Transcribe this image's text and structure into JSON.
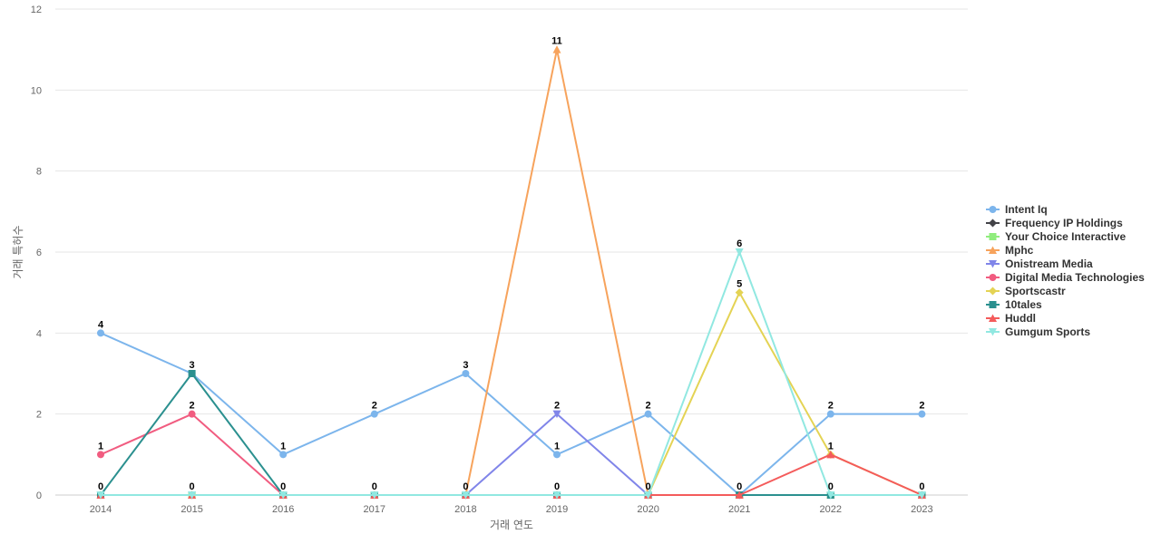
{
  "chart_data": {
    "type": "line",
    "title": "",
    "xlabel": "거래 연도",
    "ylabel": "거래 특허수",
    "x": [
      "2014",
      "2015",
      "2016",
      "2017",
      "2018",
      "2019",
      "2020",
      "2021",
      "2022",
      "2023"
    ],
    "ylim": [
      0,
      12
    ],
    "yticks": [
      0,
      2,
      4,
      6,
      8,
      10,
      12
    ],
    "grid": true,
    "legend_position": "right",
    "series": [
      {
        "name": "Intent Iq",
        "color": "#7cb5ec",
        "marker": "circle",
        "values": [
          4,
          3,
          1,
          2,
          3,
          1,
          2,
          0,
          2,
          2
        ]
      },
      {
        "name": "Frequency IP Holdings",
        "color": "#434348",
        "marker": "diamond",
        "values": [
          0,
          0,
          0,
          0,
          0,
          0,
          0,
          0,
          0,
          0
        ]
      },
      {
        "name": "Your Choice Interactive",
        "color": "#90ed7d",
        "marker": "square",
        "values": [
          0,
          0,
          0,
          0,
          0,
          0,
          0,
          0,
          0,
          0
        ]
      },
      {
        "name": "Mphc",
        "color": "#f7a35c",
        "marker": "triangle",
        "values": [
          0,
          0,
          0,
          0,
          0,
          11,
          0,
          0,
          0,
          0
        ]
      },
      {
        "name": "Onistream Media",
        "color": "#8085e9",
        "marker": "triangle-down",
        "values": [
          0,
          0,
          0,
          0,
          0,
          2,
          0,
          0,
          0,
          0
        ]
      },
      {
        "name": "Digital Media Technologies",
        "color": "#f15c80",
        "marker": "circle",
        "values": [
          1,
          2,
          0,
          0,
          0,
          0,
          0,
          0,
          0,
          0
        ]
      },
      {
        "name": "Sportscastr",
        "color": "#e4d354",
        "marker": "diamond",
        "values": [
          0,
          0,
          0,
          0,
          0,
          0,
          0,
          5,
          1,
          0
        ]
      },
      {
        "name": "10tales",
        "color": "#2b908f",
        "marker": "square",
        "values": [
          0,
          3,
          0,
          0,
          0,
          0,
          0,
          0,
          0,
          0
        ]
      },
      {
        "name": "Huddl",
        "color": "#f45b5b",
        "marker": "triangle",
        "values": [
          0,
          0,
          0,
          0,
          0,
          0,
          0,
          0,
          1,
          0
        ]
      },
      {
        "name": "Gumgum Sports",
        "color": "#91e8e1",
        "marker": "triangle-down",
        "values": [
          0,
          0,
          0,
          0,
          0,
          0,
          0,
          6,
          0,
          0
        ]
      }
    ],
    "data_labels": [
      {
        "x": "2014",
        "value": 4,
        "series": "Intent Iq"
      },
      {
        "x": "2014",
        "value": 1,
        "series": "Digital Media Technologies"
      },
      {
        "x": "2014",
        "value": 0,
        "series": "10tales"
      },
      {
        "x": "2015",
        "value": 3,
        "series": "10tales"
      },
      {
        "x": "2015",
        "value": 2,
        "series": "Digital Media Technologies"
      },
      {
        "x": "2015",
        "value": 0,
        "series": "Gumgum Sports"
      },
      {
        "x": "2016",
        "value": 1,
        "series": "Intent Iq"
      },
      {
        "x": "2016",
        "value": 0,
        "series": "Gumgum Sports"
      },
      {
        "x": "2017",
        "value": 2,
        "series": "Intent Iq"
      },
      {
        "x": "2017",
        "value": 0,
        "series": "Gumgum Sports"
      },
      {
        "x": "2018",
        "value": 3,
        "series": "Intent Iq"
      },
      {
        "x": "2018",
        "value": 0,
        "series": "Gumgum Sports"
      },
      {
        "x": "2019",
        "value": 11,
        "series": "Mphc"
      },
      {
        "x": "2019",
        "value": 2,
        "series": "Onistream Media"
      },
      {
        "x": "2019",
        "value": 1,
        "series": "Intent Iq"
      },
      {
        "x": "2019",
        "value": 0,
        "series": "Gumgum Sports"
      },
      {
        "x": "2020",
        "value": 2,
        "series": "Intent Iq"
      },
      {
        "x": "2020",
        "value": 0,
        "series": "Gumgum Sports"
      },
      {
        "x": "2021",
        "value": 6,
        "series": "Gumgum Sports"
      },
      {
        "x": "2021",
        "value": 5,
        "series": "Sportscastr"
      },
      {
        "x": "2021",
        "value": 0,
        "series": "Huddl"
      },
      {
        "x": "2022",
        "value": 2,
        "series": "Intent Iq"
      },
      {
        "x": "2022",
        "value": 1,
        "series": "Sportscastr"
      },
      {
        "x": "2022",
        "value": 0,
        "series": "Gumgum Sports"
      },
      {
        "x": "2023",
        "value": 2,
        "series": "Intent Iq"
      },
      {
        "x": "2023",
        "value": 0,
        "series": "Gumgum Sports"
      }
    ]
  }
}
